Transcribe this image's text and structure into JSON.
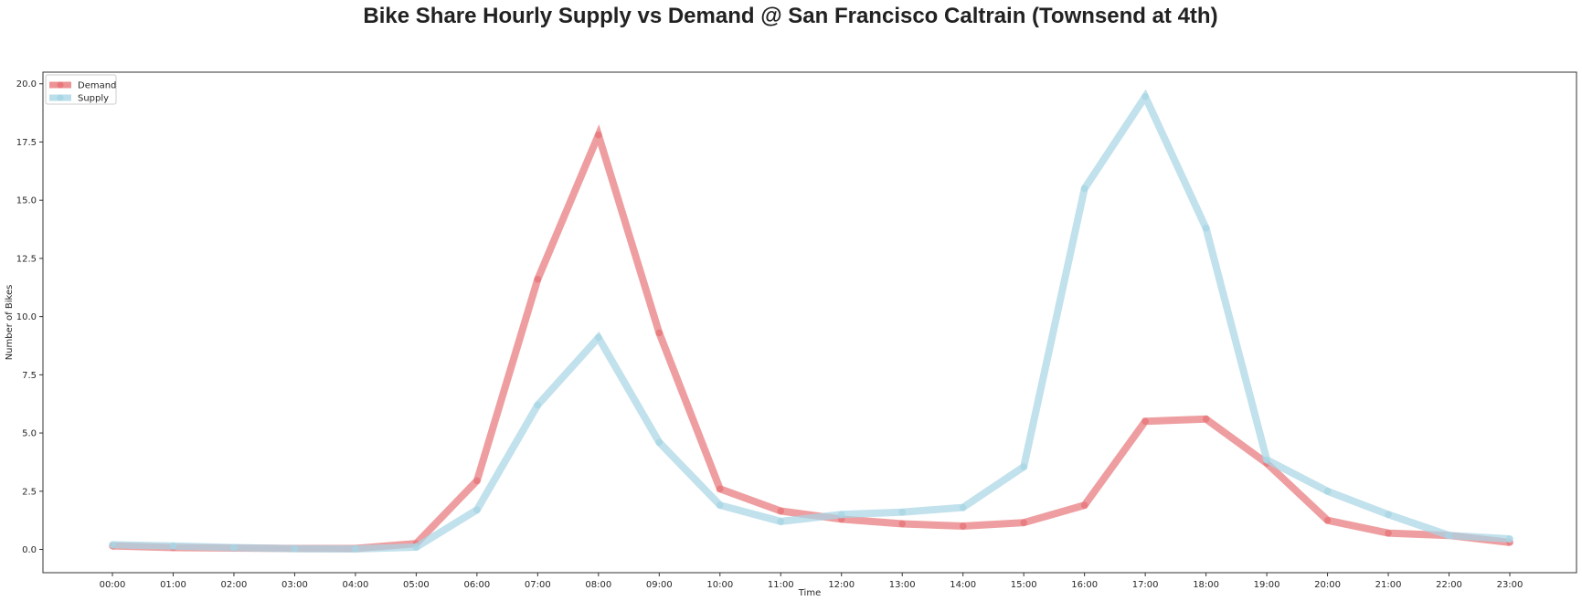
{
  "chart_data": {
    "type": "line",
    "title": "Bike Share Hourly Supply vs Demand @ San Francisco Caltrain (Townsend at 4th)",
    "xlabel": "Time",
    "ylabel": "Number of Bikes",
    "categories": [
      "00:00",
      "01:00",
      "02:00",
      "03:00",
      "04:00",
      "05:00",
      "06:00",
      "07:00",
      "08:00",
      "09:00",
      "10:00",
      "11:00",
      "12:00",
      "13:00",
      "14:00",
      "15:00",
      "16:00",
      "17:00",
      "18:00",
      "19:00",
      "20:00",
      "21:00",
      "22:00",
      "23:00"
    ],
    "ylim": [
      -1.0,
      20.5
    ],
    "yticks": [
      "0.0",
      "2.5",
      "5.0",
      "7.5",
      "10.0",
      "12.5",
      "15.0",
      "17.5",
      "20.0"
    ],
    "grid": false,
    "legend_position": "top-left",
    "series": [
      {
        "name": "Demand",
        "color": "#e8787c",
        "values": [
          0.15,
          0.08,
          0.06,
          0.04,
          0.04,
          0.25,
          2.95,
          11.6,
          17.8,
          9.3,
          2.6,
          1.65,
          1.3,
          1.1,
          1.0,
          1.15,
          1.9,
          5.5,
          5.6,
          3.7,
          1.25,
          0.7,
          0.6,
          0.3
        ]
      },
      {
        "name": "Supply",
        "color": "#a9d6e5",
        "values": [
          0.2,
          0.15,
          0.08,
          0.03,
          0.02,
          0.1,
          1.7,
          6.2,
          9.1,
          4.6,
          1.9,
          1.2,
          1.5,
          1.6,
          1.8,
          3.55,
          15.5,
          19.45,
          13.8,
          3.85,
          2.5,
          1.5,
          0.6,
          0.45
        ]
      }
    ]
  }
}
